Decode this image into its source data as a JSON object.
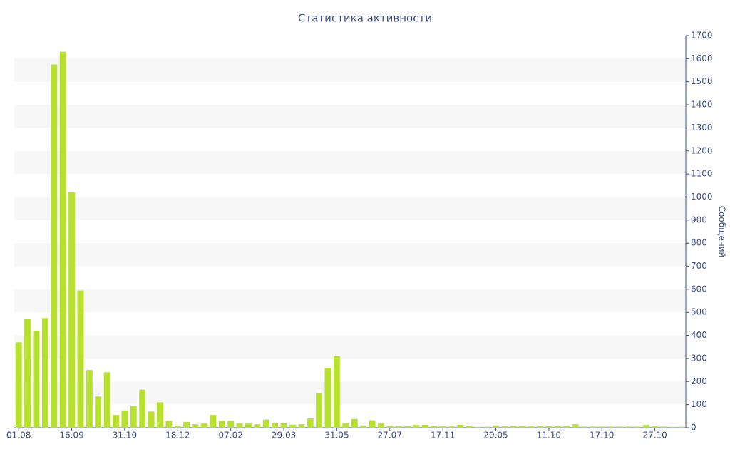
{
  "chart_data": {
    "type": "bar",
    "title": "Статистика активности",
    "y_label": "Сообщений",
    "categories": [
      "01.08",
      null,
      null,
      null,
      null,
      null,
      "16.09",
      null,
      null,
      null,
      null,
      null,
      "31.10",
      null,
      null,
      null,
      null,
      null,
      "18.12",
      null,
      null,
      null,
      null,
      null,
      "07.02",
      null,
      null,
      null,
      null,
      null,
      "29.03",
      null,
      null,
      null,
      null,
      null,
      "31.05",
      null,
      null,
      null,
      null,
      null,
      "27.07",
      null,
      null,
      null,
      null,
      null,
      "17.11",
      null,
      null,
      null,
      null,
      null,
      "20.05",
      null,
      null,
      null,
      null,
      null,
      "11.10",
      null,
      null,
      null,
      null,
      null,
      "17.10",
      null,
      null,
      null,
      null,
      null,
      "27.10",
      null,
      null,
      null
    ],
    "values": [
      370,
      470,
      420,
      475,
      1575,
      1630,
      1020,
      595,
      250,
      135,
      240,
      55,
      75,
      95,
      165,
      70,
      110,
      30,
      10,
      25,
      15,
      18,
      55,
      30,
      30,
      18,
      18,
      15,
      35,
      20,
      20,
      13,
      15,
      40,
      150,
      260,
      310,
      20,
      38,
      10,
      32,
      18,
      8,
      8,
      8,
      12,
      13,
      8,
      6,
      6,
      13,
      9,
      4,
      4,
      10,
      6,
      8,
      8,
      6,
      8,
      8,
      8,
      8,
      15,
      5,
      5,
      5,
      5,
      5,
      5,
      5,
      12,
      6,
      5,
      4,
      4
    ],
    "color": "#b8e02e",
    "ylim": [
      0,
      1700
    ],
    "yticks": [
      0,
      100,
      200,
      300,
      400,
      500,
      600,
      700,
      800,
      900,
      1000,
      1100,
      1200,
      1300,
      1400,
      1500,
      1600,
      1700
    ],
    "grid": true,
    "y_axis_side": "right"
  }
}
